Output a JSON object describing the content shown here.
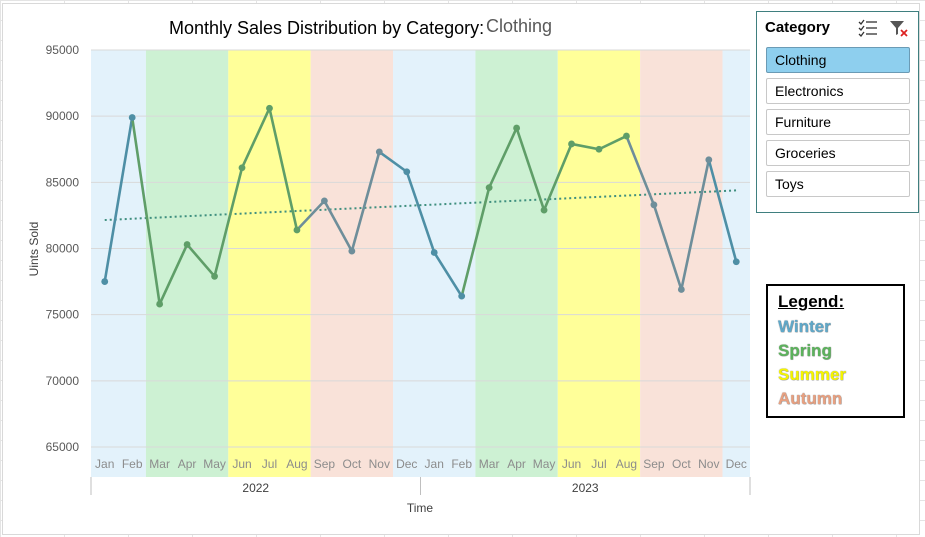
{
  "chart_title": "Monthly Sales Distribution by Category:",
  "selected_category": "Clothing",
  "slicer": {
    "header": "Category",
    "items": [
      "Clothing",
      "Electronics",
      "Furniture",
      "Groceries",
      "Toys"
    ],
    "selected": "Clothing",
    "multiselect_icon": "multi-select-icon",
    "clear_filter_icon": "clear-filter-icon"
  },
  "legend": {
    "title": "Legend:",
    "items": [
      {
        "label": "Winter",
        "color": "#5fa8c9"
      },
      {
        "label": "Spring",
        "color": "#5cb35c"
      },
      {
        "label": "Summer",
        "color": "#f5f500"
      },
      {
        "label": "Autumn",
        "color": "#e8a080"
      }
    ]
  },
  "colors": {
    "winter_band": "#e3f2fb",
    "spring_band": "#cdf1d3",
    "summer_band": "#ffff99",
    "autumn_band": "#f9e2d9",
    "line_default": "#4e8fa5",
    "line_spring_summer": "#5f9e68",
    "line_autumn": "#6e8e9a",
    "trendline": "#3f8f7f"
  },
  "chart_data": {
    "type": "line",
    "title": "Monthly Sales Distribution by Category:",
    "xlabel": "Time",
    "ylabel": "Uints Sold",
    "ylim": [
      65000,
      95000
    ],
    "yticks": [
      65000,
      70000,
      75000,
      80000,
      85000,
      90000,
      95000
    ],
    "grid": true,
    "trendline": "linear (dotted)",
    "years": [
      "2022",
      "2023"
    ],
    "months": [
      "Jan",
      "Feb",
      "Mar",
      "Apr",
      "May",
      "Jun",
      "Jul",
      "Aug",
      "Sep",
      "Oct",
      "Nov",
      "Dec"
    ],
    "season_bands": [
      {
        "season": "Winter",
        "start": 0,
        "end": 2
      },
      {
        "season": "Spring",
        "start": 2,
        "end": 5
      },
      {
        "season": "Summer",
        "start": 5,
        "end": 8
      },
      {
        "season": "Autumn",
        "start": 8,
        "end": 11
      },
      {
        "season": "Winter",
        "start": 11,
        "end": 14
      },
      {
        "season": "Spring",
        "start": 14,
        "end": 17
      },
      {
        "season": "Summer",
        "start": 17,
        "end": 20
      },
      {
        "season": "Autumn",
        "start": 20,
        "end": 23
      },
      {
        "season": "Winter",
        "start": 23,
        "end": 24
      }
    ],
    "series": [
      {
        "name": "Clothing",
        "values": [
          77500,
          89900,
          75800,
          80300,
          77900,
          86100,
          90600,
          81400,
          83600,
          79800,
          87300,
          85800,
          79700,
          76400,
          84600,
          89100,
          82900,
          87900,
          87500,
          88500,
          83300,
          76900,
          86700,
          79000
        ]
      }
    ]
  }
}
